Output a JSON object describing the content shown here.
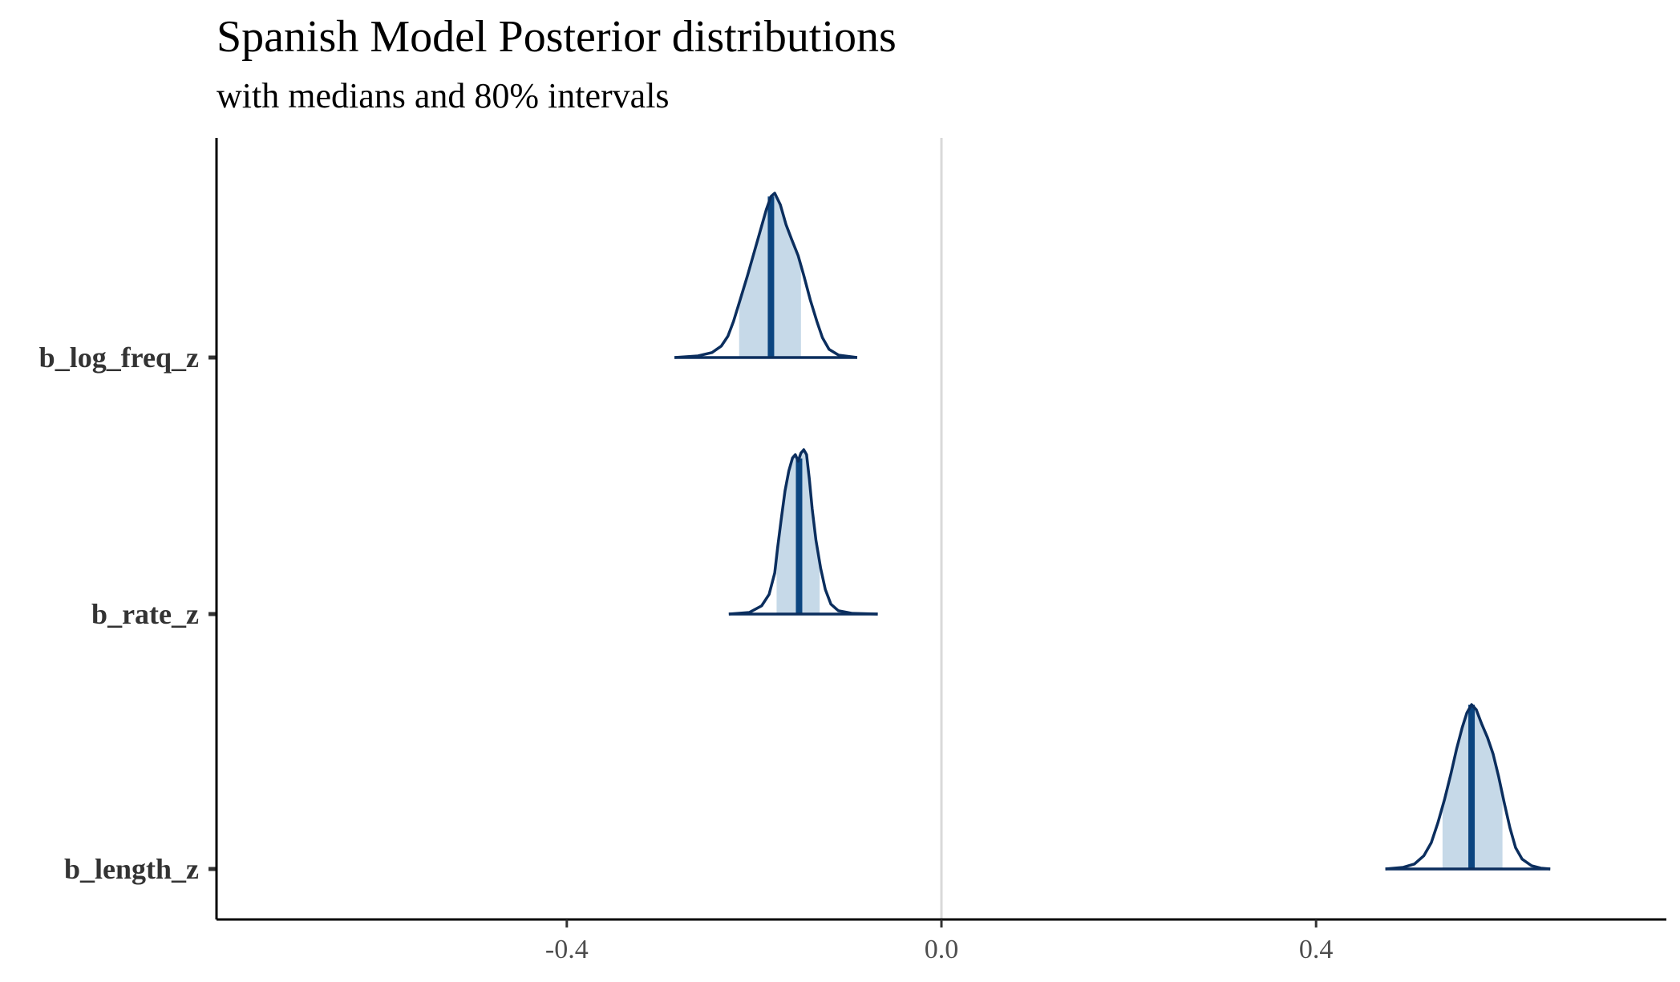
{
  "chart_data": {
    "type": "density",
    "title": "Spanish Model Posterior distributions",
    "subtitle": "with medians and 80% intervals",
    "xlabel": "",
    "ylabel": "",
    "xlim": [
      -0.774,
      0.774
    ],
    "x_ticks": [
      -0.4,
      0.0,
      0.4
    ],
    "x_tick_labels": [
      "-0.4",
      "0.0",
      "0.4"
    ],
    "reference_line_x": 0.0,
    "grid": false,
    "colors": {
      "outline": "#0b2e5e",
      "interval_fill": "#c6d9e8",
      "median_line": "#0b4580",
      "reference_line": "#d9d9d9",
      "axis": "#000000"
    },
    "parameters": [
      {
        "name": "b_log_freq_z",
        "median": -0.182,
        "interval_80": [
          -0.216,
          -0.15
        ],
        "density_range": [
          -0.285,
          -0.09
        ],
        "density": [
          [
            -0.285,
            0.0
          ],
          [
            -0.26,
            0.01
          ],
          [
            -0.245,
            0.03
          ],
          [
            -0.235,
            0.07
          ],
          [
            -0.228,
            0.13
          ],
          [
            -0.222,
            0.22
          ],
          [
            -0.215,
            0.35
          ],
          [
            -0.207,
            0.5
          ],
          [
            -0.2,
            0.64
          ],
          [
            -0.193,
            0.78
          ],
          [
            -0.187,
            0.9
          ],
          [
            -0.182,
            0.98
          ],
          [
            -0.178,
            1.0
          ],
          [
            -0.172,
            0.93
          ],
          [
            -0.166,
            0.81
          ],
          [
            -0.16,
            0.72
          ],
          [
            -0.153,
            0.62
          ],
          [
            -0.147,
            0.5
          ],
          [
            -0.14,
            0.35
          ],
          [
            -0.133,
            0.22
          ],
          [
            -0.127,
            0.12
          ],
          [
            -0.12,
            0.05
          ],
          [
            -0.11,
            0.015
          ],
          [
            -0.09,
            0.0
          ]
        ]
      },
      {
        "name": "b_rate_z",
        "median": -0.152,
        "interval_80": [
          -0.176,
          -0.13
        ],
        "density_range": [
          -0.227,
          -0.068
        ],
        "density": [
          [
            -0.227,
            0.0
          ],
          [
            -0.205,
            0.01
          ],
          [
            -0.192,
            0.05
          ],
          [
            -0.184,
            0.12
          ],
          [
            -0.178,
            0.25
          ],
          [
            -0.175,
            0.4
          ],
          [
            -0.171,
            0.58
          ],
          [
            -0.167,
            0.75
          ],
          [
            -0.163,
            0.87
          ],
          [
            -0.159,
            0.95
          ],
          [
            -0.156,
            0.97
          ],
          [
            -0.153,
            0.93
          ],
          [
            -0.15,
            0.98
          ],
          [
            -0.147,
            1.0
          ],
          [
            -0.144,
            0.97
          ],
          [
            -0.141,
            0.82
          ],
          [
            -0.138,
            0.64
          ],
          [
            -0.134,
            0.45
          ],
          [
            -0.129,
            0.28
          ],
          [
            -0.124,
            0.15
          ],
          [
            -0.118,
            0.06
          ],
          [
            -0.11,
            0.02
          ],
          [
            -0.095,
            0.004
          ],
          [
            -0.068,
            0.0
          ]
        ]
      },
      {
        "name": "b_length_z",
        "median": 0.566,
        "interval_80": [
          0.535,
          0.599
        ],
        "density_range": [
          0.474,
          0.65
        ],
        "density": [
          [
            0.474,
            0.0
          ],
          [
            0.493,
            0.01
          ],
          [
            0.505,
            0.03
          ],
          [
            0.515,
            0.08
          ],
          [
            0.523,
            0.16
          ],
          [
            0.53,
            0.28
          ],
          [
            0.537,
            0.42
          ],
          [
            0.544,
            0.58
          ],
          [
            0.55,
            0.73
          ],
          [
            0.556,
            0.86
          ],
          [
            0.561,
            0.95
          ],
          [
            0.566,
            1.0
          ],
          [
            0.571,
            0.97
          ],
          [
            0.577,
            0.88
          ],
          [
            0.583,
            0.8
          ],
          [
            0.589,
            0.7
          ],
          [
            0.595,
            0.56
          ],
          [
            0.601,
            0.4
          ],
          [
            0.607,
            0.25
          ],
          [
            0.613,
            0.13
          ],
          [
            0.62,
            0.06
          ],
          [
            0.63,
            0.02
          ],
          [
            0.64,
            0.005
          ],
          [
            0.65,
            0.0
          ]
        ]
      }
    ]
  }
}
